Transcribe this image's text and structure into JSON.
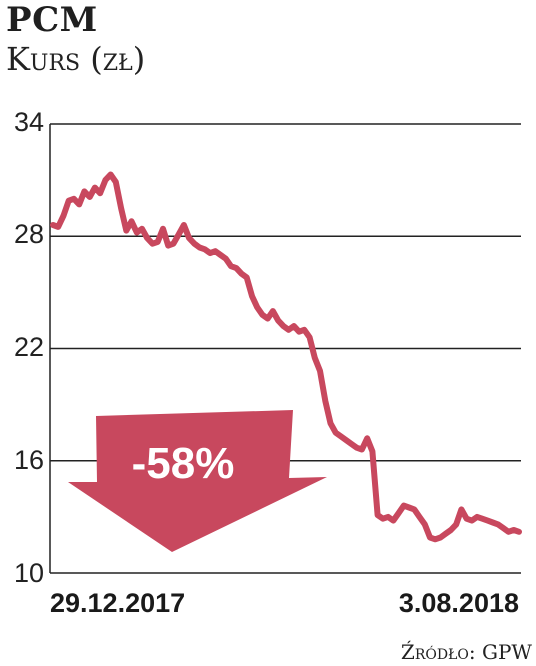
{
  "header": {
    "title": "PCM",
    "subtitle": "Kurs (zł)"
  },
  "footer": {
    "source": "Źródło: GPW"
  },
  "colors": {
    "line": "#c8485e",
    "arrow": "#c8485e",
    "arrow_text": "#ffffff",
    "grid": "#222222"
  },
  "chart_data": {
    "type": "line",
    "ylim": [
      10,
      34
    ],
    "yticks": [
      "34",
      "28",
      "22",
      "16",
      "10"
    ],
    "xtick_labels": [
      "29.12.2017",
      "3.08.2018"
    ],
    "grid": true,
    "annotation": "-58%",
    "series": [
      {
        "values": [
          28.6,
          28.5,
          29.1,
          29.9,
          30.0,
          29.7,
          30.4,
          30.1,
          30.6,
          30.3,
          31.0,
          31.3,
          30.9,
          29.5,
          28.3,
          28.8,
          28.2,
          28.4,
          27.9,
          27.6,
          27.7,
          28.4,
          27.5,
          27.6,
          28.1,
          28.6,
          27.9,
          27.6,
          27.4,
          27.3,
          27.1,
          27.2,
          27.0,
          26.8,
          26.4,
          26.3,
          26.0,
          25.8,
          24.8,
          24.2,
          23.8,
          23.6,
          24.0,
          23.5,
          23.2,
          23.0,
          23.2,
          22.9,
          23.0,
          22.6,
          21.5,
          20.8,
          19.2,
          18.0,
          17.5,
          17.3,
          17.1,
          16.9,
          16.7,
          16.6,
          17.2,
          16.5,
          13.1,
          12.9,
          13.0,
          12.8,
          13.2,
          13.6,
          13.5,
          13.4,
          13.0,
          12.6,
          11.9,
          11.8,
          11.9,
          12.1,
          12.3,
          12.6,
          13.4,
          12.9,
          12.8,
          13.0,
          12.9,
          12.8,
          12.7,
          12.6,
          12.4,
          12.2,
          12.3,
          12.2
        ]
      }
    ]
  }
}
